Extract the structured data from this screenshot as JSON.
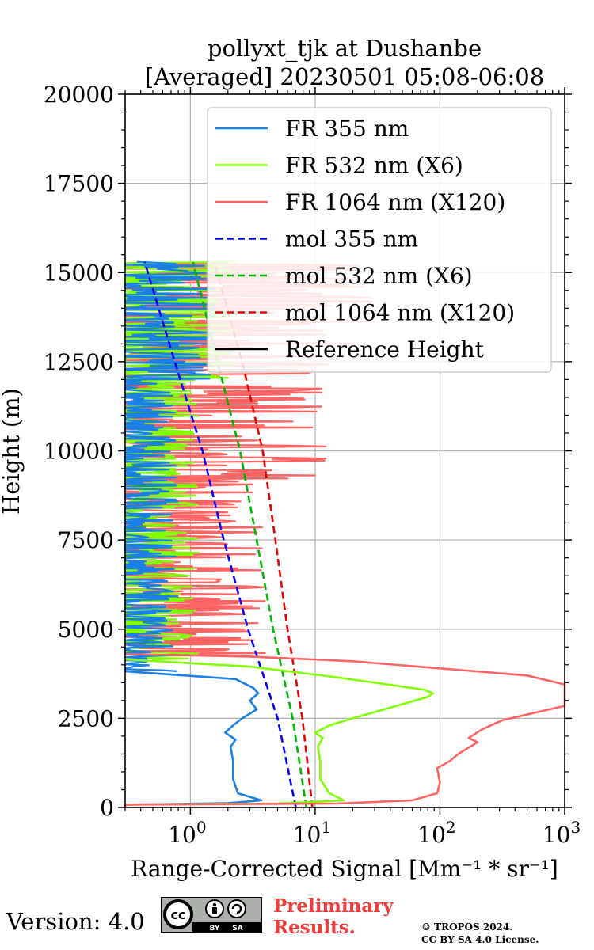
{
  "chart_data": {
    "type": "line",
    "title_line1": "pollyxt_tjk at Dushanbe",
    "title_line2": "[Averaged] 20230501 05:08-06:08",
    "xlabel": "Range-Corrected Signal [Mm⁻¹ * sr⁻¹]",
    "ylabel": "Height (m)",
    "x_scale": "log",
    "xlim": [
      0.3,
      1000
    ],
    "ylim": [
      0,
      20000
    ],
    "x_ticks": [
      {
        "base": "10",
        "exp": "0",
        "value": 1
      },
      {
        "base": "10",
        "exp": "1",
        "value": 10
      },
      {
        "base": "10",
        "exp": "2",
        "value": 100
      },
      {
        "base": "10",
        "exp": "3",
        "value": 1000
      }
    ],
    "y_ticks": [
      "0",
      "2500",
      "5000",
      "7500",
      "10000",
      "12500",
      "15000",
      "17500",
      "20000"
    ],
    "grid": true,
    "legend_position": "top-right",
    "legend": [
      {
        "label": "FR 355 nm",
        "color": "#1a80e8",
        "style": "solid"
      },
      {
        "label": "FR 532 nm (X6)",
        "color": "#80ff00",
        "style": "solid"
      },
      {
        "label": "FR 1064 nm (X120)",
        "color": "#ff6464",
        "style": "solid"
      },
      {
        "label": "mol 355 nm",
        "color": "#0000ff",
        "style": "dashed"
      },
      {
        "label": "mol 532 nm (X6)",
        "color": "#00b400",
        "style": "dashed"
      },
      {
        "label": "mol 1064 nm (X120)",
        "color": "#e60000",
        "style": "dashed"
      },
      {
        "label": "Reference Height",
        "color": "#000000",
        "style": "solid"
      }
    ],
    "series": [
      {
        "name": "mol 355 nm",
        "color": "#0000ff",
        "style": "dashed",
        "points": [
          [
            7.0,
            0
          ],
          [
            5.0,
            2500
          ],
          [
            2.9,
            5000
          ],
          [
            1.85,
            7500
          ],
          [
            1.25,
            10000
          ],
          [
            0.75,
            12500
          ],
          [
            0.43,
            15300
          ]
        ]
      },
      {
        "name": "mol 532 nm (X6)",
        "color": "#00b400",
        "style": "dashed",
        "points": [
          [
            8.5,
            0
          ],
          [
            6.6,
            2500
          ],
          [
            4.6,
            5000
          ],
          [
            3.4,
            7500
          ],
          [
            2.5,
            10000
          ],
          [
            1.65,
            12500
          ],
          [
            1.05,
            15300
          ]
        ]
      },
      {
        "name": "mol 1064 nm (X120)",
        "color": "#e60000",
        "style": "dashed",
        "points": [
          [
            9.5,
            0
          ],
          [
            7.9,
            2500
          ],
          [
            6.0,
            5000
          ],
          [
            4.8,
            7500
          ],
          [
            3.8,
            10000
          ],
          [
            2.6,
            12500
          ],
          [
            1.55,
            15300
          ]
        ]
      },
      {
        "name": "FR 355 nm",
        "color": "#1a80e8",
        "style": "solid",
        "points": [
          [
            0.3,
            0
          ],
          [
            0.3,
            80
          ],
          [
            2.0,
            120
          ],
          [
            3.7,
            200
          ],
          [
            2.4,
            400
          ],
          [
            2.2,
            800
          ],
          [
            2.2,
            1300
          ],
          [
            2.1,
            1700
          ],
          [
            2.3,
            1900
          ],
          [
            1.9,
            2100
          ],
          [
            2.2,
            2300
          ],
          [
            2.6,
            2500
          ],
          [
            3.4,
            2750
          ],
          [
            3.0,
            3000
          ],
          [
            3.5,
            3200
          ],
          [
            3.2,
            3350
          ],
          [
            2.3,
            3600
          ],
          [
            0.3,
            3820
          ]
        ]
      },
      {
        "name": "FR 532 nm (X6)",
        "color": "#80ff00",
        "style": "solid",
        "points": [
          [
            0.3,
            0
          ],
          [
            0.3,
            80
          ],
          [
            5.0,
            110
          ],
          [
            17.0,
            200
          ],
          [
            13.0,
            400
          ],
          [
            11.0,
            800
          ],
          [
            11.0,
            1300
          ],
          [
            10.5,
            1700
          ],
          [
            11.5,
            1950
          ],
          [
            10.0,
            2100
          ],
          [
            13.0,
            2300
          ],
          [
            20.0,
            2500
          ],
          [
            40.0,
            2800
          ],
          [
            80.0,
            3100
          ],
          [
            88.0,
            3200
          ],
          [
            75.0,
            3300
          ],
          [
            38.0,
            3450
          ],
          [
            15.0,
            3650
          ],
          [
            3.0,
            3950
          ],
          [
            0.3,
            4150
          ]
        ]
      },
      {
        "name": "FR 1064 nm (X120)",
        "color": "#ff6464",
        "style": "solid",
        "points": [
          [
            0.3,
            0
          ],
          [
            0.3,
            80
          ],
          [
            15.0,
            110
          ],
          [
            60.0,
            200
          ],
          [
            95.0,
            400
          ],
          [
            100.0,
            700
          ],
          [
            95.0,
            1100
          ],
          [
            120.0,
            1300
          ],
          [
            140.0,
            1500
          ],
          [
            200.0,
            1830
          ],
          [
            170.0,
            1950
          ],
          [
            220.0,
            2200
          ],
          [
            320.0,
            2450
          ],
          [
            1000.0,
            2850
          ],
          [
            1000.0,
            3450
          ],
          [
            500.0,
            3700
          ],
          [
            100.0,
            3900
          ],
          [
            20.0,
            4100
          ],
          [
            3.0,
            4230
          ],
          [
            0.3,
            4300
          ]
        ]
      }
    ]
  },
  "footer": {
    "version": "Version: 4.0",
    "cc_label": "cc",
    "cc_by": "BY",
    "cc_sa": "SA",
    "preliminary_line1": "Preliminary",
    "preliminary_line2": "Results.",
    "copyright_line1": "© TROPOS 2024.",
    "copyright_line2": "CC BY SA 4.0 License."
  }
}
